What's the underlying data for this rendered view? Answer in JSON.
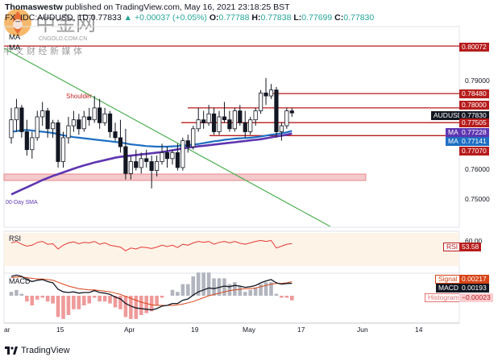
{
  "header": {
    "author": "Thomaswestw",
    "published": "published on TradingView.com, May 16, 2021 23:18:25 BST",
    "symbol": "FX_IDC:AUDUSD, 1D",
    "last": "0.77833",
    "change": "▲ +0.00037 (+0.05%)",
    "o_label": "O:",
    "o": "0.77788",
    "h_label": "H:",
    "h": "0.77838",
    "l_label": "L:",
    "l": "0.77699",
    "c_label": "C:",
    "c": "0.77830"
  },
  "indicator_labels": {
    "ma1": "MA",
    "ma2": "MA"
  },
  "annotations": {
    "shoulder": "Shoulder",
    "sma": "00-Day SMA"
  },
  "price_tags": {
    "p80072": "0.80072",
    "p79000": "0.79000",
    "p78480": "0.78480",
    "p78000": "0.78000",
    "audusd_label": "AUDUSD",
    "audusd": "0.77830",
    "p77505": "0.77505",
    "ma1_label": "MA",
    "ma1": "0.77228",
    "ma2_label": "MA",
    "ma2": "0.77141",
    "p77070": "0.77070",
    "p76000": "0.76000",
    "p75000": "0.75000"
  },
  "rsi": {
    "label": "RSI",
    "tag_label": "RSI",
    "tag_value": "53.58",
    "axis": "60.00"
  },
  "macd": {
    "label": "MACD",
    "signal_label": "Signal",
    "signal": "0.00217",
    "macd_label": "MACD",
    "macd_value": "0.00193",
    "hist_label": "Histogram",
    "hist": "−0.00023"
  },
  "xaxis": [
    "ar",
    "15",
    "Apr",
    "19",
    "May",
    "17",
    "Jun",
    "14"
  ],
  "footer": {
    "brand": "TradingView"
  },
  "watermark": {
    "cn_name": "中金网",
    "domain": "CNGOLD.COM.CN",
    "slogan": "中 文 财 经 新 媒 体"
  },
  "colors": {
    "up": "#26a69a",
    "down": "#131722",
    "ma_blue": "#1e6fc3",
    "ma_purple": "#5e35b1",
    "level": "#b71c1c",
    "trend": "#4caf50",
    "rsi": "#e53935",
    "macd": "#131722",
    "signal": "#d84315"
  },
  "chart_data": {
    "type": "candlestick",
    "symbol": "FX_IDC:AUDUSD",
    "timeframe": "1D",
    "ylim": [
      0.74,
      0.804
    ],
    "x_ticks": [
      "ar",
      "15",
      "Apr",
      "19",
      "May",
      "17",
      "Jun",
      "14"
    ],
    "horizontal_levels": [
      0.80072,
      0.7848,
      0.78,
      0.77505,
      0.7707
    ],
    "support_zone": [
      0.7565,
      0.7585
    ],
    "candles": [
      [
        0.77,
        0.78,
        0.768,
        0.776
      ],
      [
        0.776,
        0.783,
        0.772,
        0.78
      ],
      [
        0.78,
        0.781,
        0.77,
        0.772
      ],
      [
        0.772,
        0.776,
        0.764,
        0.766
      ],
      [
        0.766,
        0.772,
        0.763,
        0.77
      ],
      [
        0.77,
        0.779,
        0.769,
        0.777
      ],
      [
        0.777,
        0.782,
        0.774,
        0.779
      ],
      [
        0.779,
        0.78,
        0.77,
        0.773
      ],
      [
        0.773,
        0.776,
        0.77,
        0.775
      ],
      [
        0.775,
        0.776,
        0.76,
        0.762
      ],
      [
        0.762,
        0.772,
        0.76,
        0.77
      ],
      [
        0.77,
        0.777,
        0.768,
        0.774
      ],
      [
        0.774,
        0.779,
        0.772,
        0.776
      ],
      [
        0.776,
        0.778,
        0.771,
        0.773
      ],
      [
        0.773,
        0.779,
        0.772,
        0.777
      ],
      [
        0.777,
        0.78,
        0.774,
        0.776
      ],
      [
        0.776,
        0.784,
        0.775,
        0.78
      ],
      [
        0.78,
        0.783,
        0.773,
        0.775
      ],
      [
        0.775,
        0.78,
        0.774,
        0.778
      ],
      [
        0.778,
        0.779,
        0.77,
        0.772
      ],
      [
        0.772,
        0.775,
        0.769,
        0.77
      ],
      [
        0.77,
        0.776,
        0.765,
        0.767
      ],
      [
        0.767,
        0.773,
        0.756,
        0.758
      ],
      [
        0.758,
        0.764,
        0.756,
        0.762
      ],
      [
        0.762,
        0.766,
        0.759,
        0.76
      ],
      [
        0.76,
        0.765,
        0.758,
        0.763
      ],
      [
        0.763,
        0.766,
        0.76,
        0.762
      ],
      [
        0.762,
        0.764,
        0.753,
        0.759
      ],
      [
        0.759,
        0.764,
        0.757,
        0.762
      ],
      [
        0.762,
        0.768,
        0.761,
        0.765
      ],
      [
        0.765,
        0.767,
        0.76,
        0.763
      ],
      [
        0.763,
        0.766,
        0.761,
        0.765
      ],
      [
        0.765,
        0.768,
        0.759,
        0.76
      ],
      [
        0.76,
        0.77,
        0.759,
        0.769
      ],
      [
        0.769,
        0.771,
        0.765,
        0.767
      ],
      [
        0.767,
        0.774,
        0.766,
        0.773
      ],
      [
        0.773,
        0.78,
        0.772,
        0.776
      ],
      [
        0.776,
        0.779,
        0.773,
        0.775
      ],
      [
        0.775,
        0.781,
        0.774,
        0.778
      ],
      [
        0.778,
        0.78,
        0.771,
        0.772
      ],
      [
        0.772,
        0.779,
        0.771,
        0.777
      ],
      [
        0.777,
        0.782,
        0.775,
        0.776
      ],
      [
        0.776,
        0.779,
        0.772,
        0.773
      ],
      [
        0.773,
        0.78,
        0.772,
        0.779
      ],
      [
        0.779,
        0.781,
        0.774,
        0.775
      ],
      [
        0.775,
        0.779,
        0.77,
        0.772
      ],
      [
        0.772,
        0.777,
        0.771,
        0.776
      ],
      [
        0.776,
        0.78,
        0.774,
        0.779
      ],
      [
        0.779,
        0.786,
        0.778,
        0.785
      ],
      [
        0.785,
        0.79,
        0.781,
        0.784
      ],
      [
        0.784,
        0.788,
        0.783,
        0.786
      ],
      [
        0.786,
        0.787,
        0.77,
        0.772
      ],
      [
        0.772,
        0.775,
        0.769,
        0.774
      ],
      [
        0.774,
        0.78,
        0.773,
        0.779
      ],
      [
        0.779,
        0.78,
        0.777,
        0.7783
      ]
    ],
    "ma_blue": [
      0.772,
      0.7722,
      0.7725,
      0.7726,
      0.7724,
      0.7722,
      0.772,
      0.7718,
      0.7716,
      0.7712,
      0.7708,
      0.7705,
      0.7702,
      0.77,
      0.7698,
      0.7696,
      0.7694,
      0.7692,
      0.769,
      0.7688,
      0.7686,
      0.7684,
      0.7681,
      0.7678,
      0.7676,
      0.7674,
      0.7672,
      0.7671,
      0.767,
      0.767,
      0.767,
      0.7671,
      0.7672,
      0.7673,
      0.7675,
      0.7677,
      0.7679,
      0.7682,
      0.7685,
      0.7688,
      0.769,
      0.7693,
      0.7695,
      0.7697,
      0.7698,
      0.7699,
      0.77,
      0.7702,
      0.7704,
      0.7707,
      0.771,
      0.7712,
      0.7715,
      0.7718,
      0.7723
    ],
    "ma_purple": [
      0.751,
      0.7518,
      0.7526,
      0.7534,
      0.7542,
      0.755,
      0.7558,
      0.7565,
      0.7572,
      0.7578,
      0.7584,
      0.759,
      0.7596,
      0.7602,
      0.7607,
      0.7612,
      0.7617,
      0.7621,
      0.7625,
      0.7629,
      0.7633,
      0.7636,
      0.7638,
      0.764,
      0.7642,
      0.7644,
      0.7646,
      0.7648,
      0.765,
      0.7652,
      0.7655,
      0.7658,
      0.7661,
      0.7664,
      0.7667,
      0.7669,
      0.7671,
      0.7673,
      0.7675,
      0.7677,
      0.7679,
      0.7681,
      0.7683,
      0.7685,
      0.7687,
      0.7689,
      0.7691,
      0.7693,
      0.7695,
      0.7698,
      0.7701,
      0.7704,
      0.7707,
      0.771,
      0.7714
    ],
    "trendline": [
      [
        0,
        0.8
      ],
      [
        66,
        0.742
      ]
    ],
    "rsi": [
      55,
      58,
      52,
      48,
      50,
      56,
      58,
      52,
      53,
      42,
      50,
      55,
      57,
      53,
      56,
      55,
      58,
      52,
      55,
      50,
      48,
      46,
      38,
      44,
      42,
      46,
      45,
      43,
      46,
      50,
      47,
      50,
      45,
      52,
      50,
      55,
      58,
      56,
      58,
      52,
      56,
      58,
      55,
      58,
      54,
      52,
      55,
      58,
      60,
      58,
      60,
      44,
      48,
      52,
      53.58
    ],
    "macd": [
      0.003,
      0.0032,
      0.003,
      0.0025,
      0.0022,
      0.0024,
      0.0025,
      0.0022,
      0.002,
      0.001,
      0.0006,
      0.0005,
      0.0006,
      0.0004,
      0.0005,
      0.0005,
      0.0008,
      0.0005,
      0.0004,
      0.0002,
      -0.0002,
      -0.0005,
      -0.0012,
      -0.0016,
      -0.0019,
      -0.002,
      -0.0021,
      -0.0022,
      -0.002,
      -0.0016,
      -0.0015,
      -0.0012,
      -0.0012,
      -0.0007,
      -0.0005,
      0.0001,
      0.0006,
      0.0009,
      0.0012,
      0.0011,
      0.0013,
      0.0015,
      0.0014,
      0.0016,
      0.0015,
      0.0013,
      0.0014,
      0.0016,
      0.002,
      0.0023,
      0.0025,
      0.002,
      0.0018,
      0.0019,
      0.00193
    ],
    "signal": [
      0.0028,
      0.0029,
      0.0029,
      0.0028,
      0.0027,
      0.0026,
      0.0026,
      0.0025,
      0.0024,
      0.0021,
      0.0018,
      0.0015,
      0.0013,
      0.0011,
      0.001,
      0.0009,
      0.0009,
      0.0008,
      0.0007,
      0.0006,
      0.0004,
      0.0002,
      -0.0001,
      -0.0004,
      -0.0007,
      -0.001,
      -0.0012,
      -0.0014,
      -0.0015,
      -0.0015,
      -0.0015,
      -0.0015,
      -0.0014,
      -0.0013,
      -0.0011,
      -0.0009,
      -0.0006,
      -0.0003,
      0.0,
      0.0002,
      0.0004,
      0.0006,
      0.0008,
      0.0009,
      0.001,
      0.0011,
      0.0011,
      0.0012,
      0.0014,
      0.0016,
      0.0018,
      0.0019,
      0.0019,
      0.002,
      0.00217
    ]
  }
}
